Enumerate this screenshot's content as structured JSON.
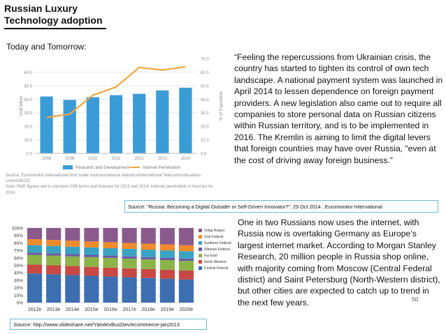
{
  "slide": {
    "title_line1": "Russian Luxury",
    "title_line2": "Technology adoption",
    "subtitle": "Today and Tomorrow:",
    "quote": "“Feeling the repercussions from Ukrainian crisis, the country has started to tighten its control of own tech landscape. A national payment system was launched in April 2014 to lessen dependence on foreign payment providers. A new legislation also came out to require all companies to store personal data on Russian citizens within Russian territory, and is to be implemented in 2016. The Kremlin is aiming to limit the digital levers that foreign countries may have over Russia, “even at the cost of driving away foreign business.”",
    "source1_label": "Source:",
    "source1_text": "“Russia: Becoming a Digital Outsider or Self-Driven Innovator?”, 29 Oct 2014 , Euromonitor International",
    "paragraph2": "One in two Russians now uses the internet, with Russia  now is overtaking Germany as Europe’s largest internet market. According to Morgan Stanley Research, 20 million people in Russia shop online, with majority coming from Moscow (Central Federal district) and Saint Petersburg (North-Western district), but other cities are expected to catch up to trend in the next few years.",
    "page_number": "50",
    "source2_label": "Source:",
    "source2_text": "http://www.slideshare.net/YandexBusDev/ecommerce-jan2013",
    "chart1_note_line1": "Source: Euromonitor International from trade sources/national statistics/International Telecommunications",
    "chart1_note_line2": "Union/OECD",
    "chart1_note_line3": "Note: R&D figures are in constant US$ terms and forecast for 2013 and 2014; internet penetration is forecast for",
    "chart1_note_line4": "2014"
  },
  "chart_data": [
    {
      "type": "bar",
      "categories": [
        "2008",
        "2009",
        "2010",
        "2011",
        "2012",
        "2013",
        "2014"
      ],
      "series": [
        {
          "name": "Research and Development",
          "kind": "bar",
          "axis": "left",
          "color": "#3b9bd6",
          "values": [
            42,
            39.5,
            41.5,
            43,
            44,
            46.5,
            48.5
          ]
        },
        {
          "name": "Internet Penetration",
          "kind": "line",
          "axis": "right",
          "color": "#f0a640",
          "values": [
            26.5,
            29,
            43,
            49,
            63.5,
            61.5,
            64
          ]
        }
      ],
      "y_left": {
        "label": "US$ billion",
        "ylim": [
          0,
          70
        ],
        "ticks": [
          "0.0",
          "10.0",
          "20.0",
          "30.0",
          "40.0",
          "50.0",
          "60.0"
        ]
      },
      "y_right": {
        "label": "% of Population",
        "ylim": [
          0,
          70
        ],
        "ticks": [
          "0.0",
          "10.0",
          "20.0",
          "30.0",
          "40.0",
          "50.0",
          "60.0",
          "70.0"
        ]
      },
      "legend": [
        "Research and Development",
        "Internet Penetration"
      ],
      "legend_position": "bottom"
    },
    {
      "type": "bar",
      "stacked": true,
      "categories": [
        "2012e",
        "2013e",
        "2014e",
        "2015e",
        "2016e",
        "2017e",
        "2018e",
        "2019e",
        "2020e"
      ],
      "ylim": [
        0,
        100
      ],
      "ticks": [
        "0%",
        "10%",
        "20%",
        "30%",
        "40%",
        "50%",
        "60%",
        "70%",
        "80%",
        "90%",
        "100%"
      ],
      "legend_position": "right",
      "series": [
        {
          "name": "Central Federal",
          "color": "#3d6fb0",
          "values": [
            39,
            38,
            37,
            36,
            35,
            34,
            33,
            32,
            31
          ]
        },
        {
          "name": "North Western",
          "color": "#c84844",
          "values": [
            12,
            12,
            12,
            12,
            12,
            12,
            12,
            12,
            12
          ]
        },
        {
          "name": "Far East",
          "color": "#8cb348",
          "values": [
            13,
            13,
            13,
            13,
            13,
            13,
            13,
            13,
            13
          ]
        },
        {
          "name": "Siberian Federal",
          "color": "#6b57a3",
          "values": [
            3,
            3,
            3,
            3,
            3,
            3,
            3,
            3,
            3
          ]
        },
        {
          "name": "Southern Federal",
          "color": "#3aa3c2",
          "values": [
            10,
            10,
            10,
            10,
            10,
            10,
            10,
            10,
            10
          ]
        },
        {
          "name": "Ural Federal",
          "color": "#f08a2c",
          "values": [
            8,
            8,
            8,
            8,
            8,
            8,
            8,
            8,
            8
          ]
        },
        {
          "name": "Volga Region",
          "color": "#8a5a8c",
          "values": [
            15,
            16,
            17,
            18,
            19,
            20,
            21,
            22,
            23
          ]
        }
      ]
    }
  ]
}
